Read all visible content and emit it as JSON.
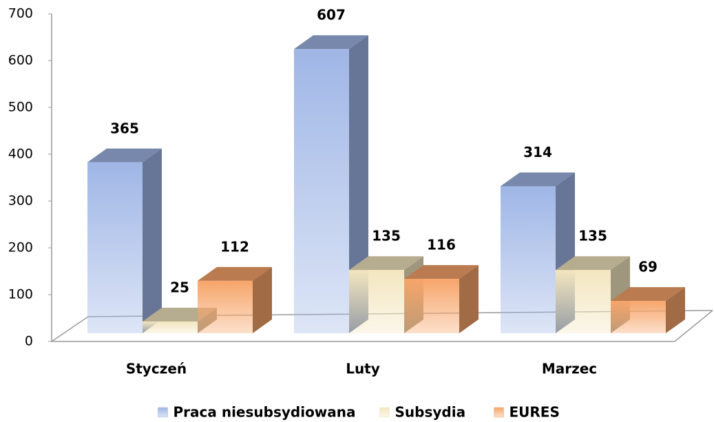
{
  "chart_data": {
    "type": "bar3d",
    "categories": [
      "Styczeń",
      "Luty",
      "Marzec"
    ],
    "series": [
      {
        "name": "Praca niesubsydiowana",
        "color": "#9fb6e6",
        "values": [
          365,
          607,
          314
        ]
      },
      {
        "name": "Subsydia",
        "color": "#f3e6c0",
        "values": [
          25,
          135,
          135
        ]
      },
      {
        "name": "EURES",
        "color": "#f7a56a",
        "values": [
          112,
          116,
          69
        ]
      }
    ],
    "ylim": [
      0,
      700
    ],
    "yticks": [
      0,
      100,
      200,
      300,
      400,
      500,
      600,
      700
    ],
    "grid": false,
    "legend": "bottom"
  }
}
